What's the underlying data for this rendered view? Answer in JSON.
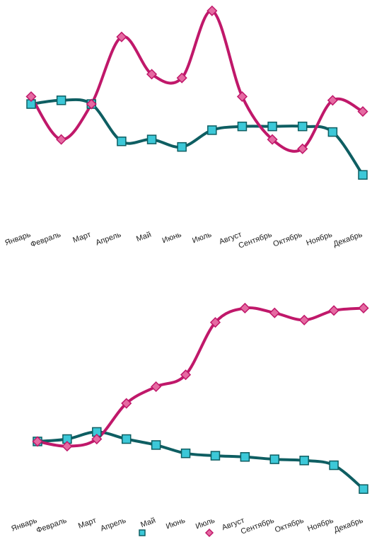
{
  "chart_data": [
    {
      "type": "line",
      "smooth": true,
      "categories": [
        "Январь",
        "Февраль",
        "Март",
        "Апрель",
        "Май",
        "Июнь",
        "Июль",
        "Август",
        "Сентябрь",
        "Октябрь",
        "Ноябрь",
        "Декабрь"
      ],
      "series": [
        {
          "color": "#0e5e62",
          "marker": "square",
          "marker_color": "#3cc8d8",
          "values": [
            40,
            41,
            40,
            30,
            30.5,
            28.5,
            33,
            34,
            34,
            34,
            32.5,
            21
          ]
        },
        {
          "color": "#c0186a",
          "marker": "diamond",
          "marker_color": "#e56aa2",
          "values": [
            42,
            30.5,
            40,
            58,
            48,
            47,
            65,
            42,
            30.5,
            28,
            41,
            38
          ]
        }
      ],
      "ylim": [
        18,
        66
      ],
      "grid": false,
      "legend": false
    },
    {
      "type": "line",
      "smooth": true,
      "categories": [
        "Январь",
        "Февраль",
        "Март",
        "Апрель",
        "Май",
        "Июнь",
        "Июль",
        "Август",
        "Сентябрь",
        "Октябрь",
        "Ноябрь",
        "Декабрь"
      ],
      "series": [
        {
          "color": "#0e5e62",
          "marker": "square",
          "marker_color": "#3cc8d8",
          "values": [
            40,
            41,
            44,
            41,
            38.5,
            35,
            34,
            33.5,
            32.5,
            32,
            30,
            20
          ]
        },
        {
          "color": "#c0186a",
          "marker": "diamond",
          "marker_color": "#e56aa2",
          "values": [
            40,
            38,
            41,
            56,
            63,
            68,
            90,
            96,
            94,
            91,
            95,
            96
          ]
        }
      ],
      "ylim": [
        15,
        100
      ],
      "grid": false,
      "legend": "bottom"
    }
  ]
}
